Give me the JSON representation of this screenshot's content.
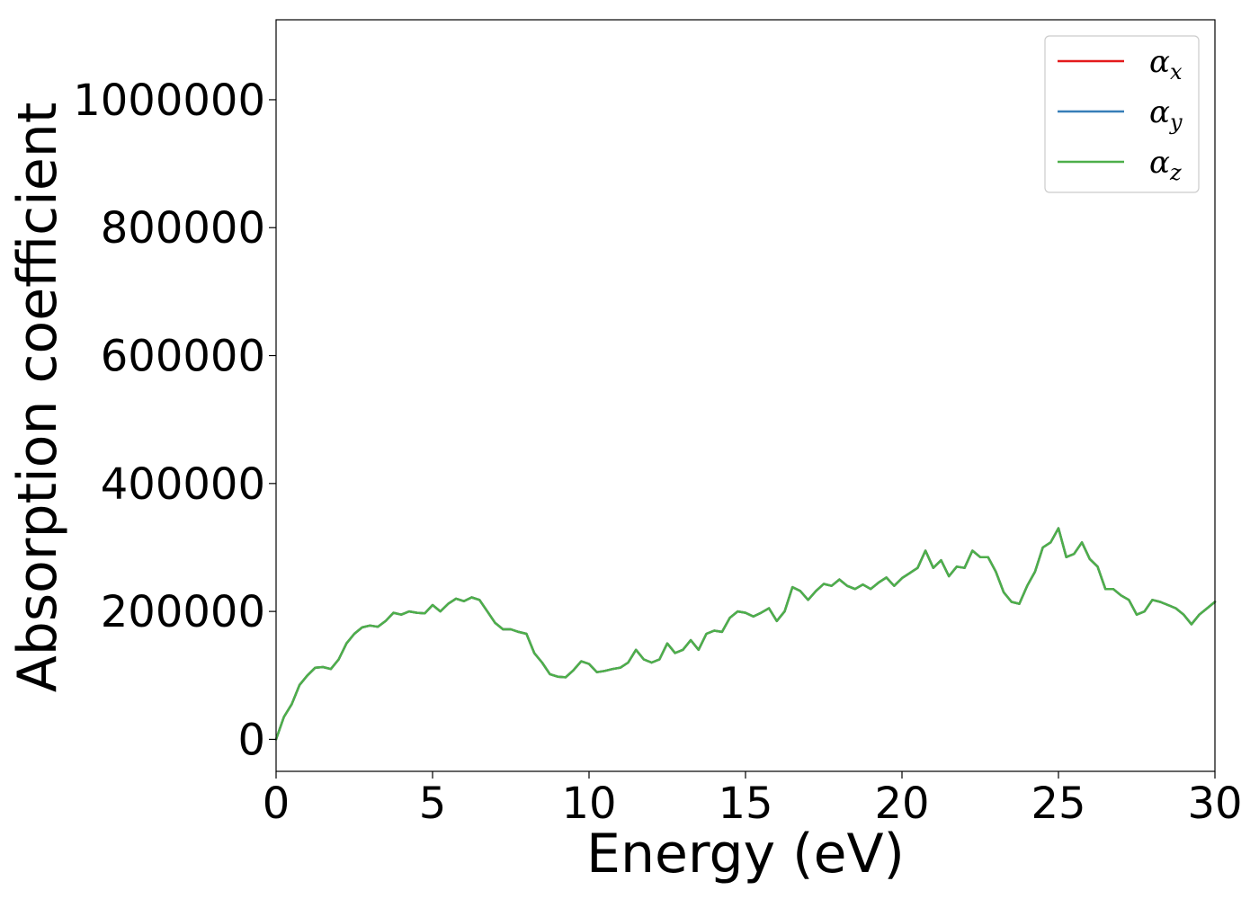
{
  "chart_data": {
    "type": "line",
    "xlabel": "Energy (eV)",
    "ylabel": "Absorption coefficient",
    "xlim": [
      0,
      30
    ],
    "ylim": [
      -50000,
      1125000
    ],
    "xticks": [
      0,
      5,
      10,
      15,
      20,
      25,
      30
    ],
    "xtick_labels": [
      "0",
      "5",
      "10",
      "15",
      "20",
      "25",
      "30"
    ],
    "yticks": [
      0,
      200000,
      400000,
      600000,
      800000,
      1000000
    ],
    "ytick_labels": [
      "0",
      "200000",
      "400000",
      "600000",
      "800000",
      "1000000"
    ],
    "grid": false,
    "legend_position": "top-right",
    "x": [
      0,
      0.25,
      0.5,
      0.75,
      1.0,
      1.25,
      1.5,
      1.75,
      2.0,
      2.25,
      2.5,
      2.75,
      3.0,
      3.25,
      3.5,
      3.75,
      4.0,
      4.25,
      4.5,
      4.75,
      5.0,
      5.25,
      5.5,
      5.75,
      6.0,
      6.25,
      6.5,
      6.75,
      7.0,
      7.25,
      7.5,
      7.75,
      8.0,
      8.25,
      8.5,
      8.75,
      9.0,
      9.25,
      9.5,
      9.75,
      10.0,
      10.25,
      10.5,
      10.75,
      11.0,
      11.25,
      11.5,
      11.75,
      12.0,
      12.25,
      12.5,
      12.75,
      13.0,
      13.25,
      13.5,
      13.75,
      14.0,
      14.25,
      14.5,
      14.75,
      15.0,
      15.25,
      15.5,
      15.75,
      16.0,
      16.25,
      16.5,
      16.75,
      17.0,
      17.25,
      17.5,
      17.75,
      18.0,
      18.25,
      18.5,
      18.75,
      19.0,
      19.25,
      19.5,
      19.75,
      20.0,
      20.25,
      20.5,
      20.75,
      21.0,
      21.25,
      21.5,
      21.75,
      22.0,
      22.25,
      22.5,
      22.75,
      23.0,
      23.25,
      23.5,
      23.75,
      24.0,
      24.25,
      24.5,
      24.75,
      25.0,
      25.25,
      25.5,
      25.75,
      26.0,
      26.25,
      26.5,
      26.75,
      27.0,
      27.25,
      27.5,
      27.75,
      28.0,
      28.25,
      28.5,
      28.75,
      29.0,
      29.25,
      29.5,
      29.75,
      30.0
    ],
    "series": [
      {
        "name": "αx",
        "color": "#e41a1c",
        "values": [
          0,
          35000,
          55000,
          85000,
          100000,
          112000,
          113000,
          110000,
          125000,
          150000,
          165000,
          175000,
          178000,
          176000,
          185000,
          198000,
          195000,
          200000,
          198000,
          197000,
          210000,
          200000,
          212000,
          220000,
          216000,
          222000,
          218000,
          200000,
          182000,
          172000,
          172000,
          168000,
          165000,
          135000,
          120000,
          102000,
          98000,
          97000,
          108000,
          122000,
          118000,
          105000,
          107000,
          110000,
          112000,
          120000,
          140000,
          125000,
          120000,
          125000,
          150000,
          135000,
          140000,
          155000,
          140000,
          165000,
          170000,
          168000,
          190000,
          200000,
          198000,
          192000,
          198000,
          205000,
          185000,
          200000,
          238000,
          232000,
          218000,
          232000,
          243000,
          240000,
          250000,
          240000,
          235000,
          242000,
          235000,
          245000,
          253000,
          240000,
          252000,
          260000,
          268000,
          295000,
          268000,
          280000,
          255000,
          270000,
          268000,
          295000,
          285000,
          285000,
          262000,
          230000,
          215000,
          212000,
          240000,
          262000,
          300000,
          308000,
          330000,
          285000,
          290000,
          308000,
          282000,
          270000,
          235000,
          235000,
          225000,
          218000,
          195000,
          200000,
          218000,
          215000,
          210000,
          205000,
          195000,
          180000,
          195000,
          205000,
          215000
        ]
      },
      {
        "name": "αy",
        "color": "#377eb8",
        "values": [
          0,
          35000,
          55000,
          85000,
          100000,
          112000,
          113000,
          110000,
          125000,
          150000,
          165000,
          175000,
          178000,
          176000,
          185000,
          198000,
          195000,
          200000,
          198000,
          197000,
          210000,
          200000,
          212000,
          220000,
          216000,
          222000,
          218000,
          200000,
          182000,
          172000,
          172000,
          168000,
          165000,
          135000,
          120000,
          102000,
          98000,
          97000,
          108000,
          122000,
          118000,
          105000,
          107000,
          110000,
          112000,
          120000,
          140000,
          125000,
          120000,
          125000,
          150000,
          135000,
          140000,
          155000,
          140000,
          165000,
          170000,
          168000,
          190000,
          200000,
          198000,
          192000,
          198000,
          205000,
          185000,
          200000,
          238000,
          232000,
          218000,
          232000,
          243000,
          240000,
          250000,
          240000,
          235000,
          242000,
          235000,
          245000,
          253000,
          240000,
          252000,
          260000,
          268000,
          295000,
          268000,
          280000,
          255000,
          270000,
          268000,
          295000,
          285000,
          285000,
          262000,
          230000,
          215000,
          212000,
          240000,
          262000,
          300000,
          308000,
          330000,
          285000,
          290000,
          308000,
          282000,
          270000,
          235000,
          235000,
          225000,
          218000,
          195000,
          200000,
          218000,
          215000,
          210000,
          205000,
          195000,
          180000,
          195000,
          205000,
          215000
        ]
      },
      {
        "name": "αz",
        "color": "#4daf4a",
        "values": [
          0,
          35000,
          55000,
          85000,
          100000,
          112000,
          113000,
          110000,
          125000,
          150000,
          165000,
          175000,
          178000,
          176000,
          185000,
          198000,
          195000,
          200000,
          198000,
          197000,
          210000,
          200000,
          212000,
          220000,
          216000,
          222000,
          218000,
          200000,
          182000,
          172000,
          172000,
          168000,
          165000,
          135000,
          120000,
          102000,
          98000,
          97000,
          108000,
          122000,
          118000,
          105000,
          107000,
          110000,
          112000,
          120000,
          140000,
          125000,
          120000,
          125000,
          150000,
          135000,
          140000,
          155000,
          140000,
          165000,
          170000,
          168000,
          190000,
          200000,
          198000,
          192000,
          198000,
          205000,
          185000,
          200000,
          238000,
          232000,
          218000,
          232000,
          243000,
          240000,
          250000,
          240000,
          235000,
          242000,
          235000,
          245000,
          253000,
          240000,
          252000,
          260000,
          268000,
          295000,
          268000,
          280000,
          255000,
          270000,
          268000,
          295000,
          285000,
          285000,
          262000,
          230000,
          215000,
          212000,
          240000,
          262000,
          300000,
          308000,
          330000,
          285000,
          290000,
          308000,
          282000,
          270000,
          235000,
          235000,
          225000,
          218000,
          195000,
          200000,
          218000,
          215000,
          210000,
          205000,
          195000,
          180000,
          195000,
          205000,
          215000
        ]
      }
    ],
    "legend": [
      {
        "symbol": "α",
        "subscript": "x",
        "color": "#e41a1c"
      },
      {
        "symbol": "α",
        "subscript": "y",
        "color": "#377eb8"
      },
      {
        "symbol": "α",
        "subscript": "z",
        "color": "#4daf4a"
      }
    ]
  }
}
